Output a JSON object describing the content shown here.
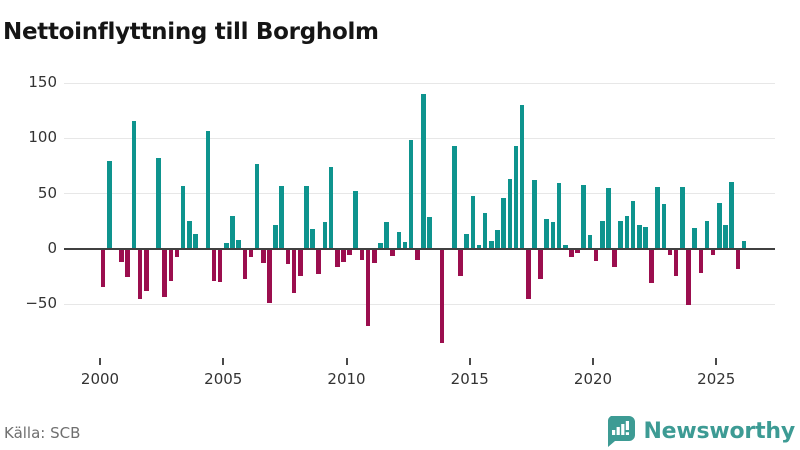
{
  "title": "Nettoinflyttning till Borgholm",
  "source": "Källa: SCB",
  "brand": "Newsworthy",
  "colors": {
    "positive_bar": "#0e948e",
    "negative_bar": "#9b0e4e",
    "logo_teal": "#3d9b94",
    "gridline": "#e7e7e7",
    "zero_axis": "#404040"
  },
  "chart_data": {
    "type": "bar",
    "title": "Nettoinflyttning till Borgholm",
    "xlabel": "",
    "ylabel": "",
    "frequency": "quarterly",
    "y_gridlines": [
      150,
      100,
      50,
      0,
      -50
    ],
    "y_tick_labels": [
      "150",
      "100",
      "50",
      "0",
      "−50"
    ],
    "x_tick_labels": [
      "2000",
      "2005",
      "2010",
      "2015",
      "2020",
      "2025"
    ],
    "ylim": [
      -95,
      160
    ],
    "grid": true,
    "legend": false,
    "points": [
      [
        "2000Q1",
        -34
      ],
      [
        "2000Q2",
        80
      ],
      [
        "2000Q3",
        0
      ],
      [
        "2000Q4",
        -12
      ],
      [
        "2001Q1",
        -25
      ],
      [
        "2001Q2",
        116
      ],
      [
        "2001Q3",
        -45
      ],
      [
        "2001Q4",
        -38
      ],
      [
        "2002Q1",
        0
      ],
      [
        "2002Q2",
        82
      ],
      [
        "2002Q3",
        -43
      ],
      [
        "2002Q4",
        -29
      ],
      [
        "2003Q1",
        -7
      ],
      [
        "2003Q2",
        57
      ],
      [
        "2003Q3",
        25
      ],
      [
        "2003Q4",
        14
      ],
      [
        "2004Q1",
        0
      ],
      [
        "2004Q2",
        107
      ],
      [
        "2004Q3",
        -29
      ],
      [
        "2004Q4",
        -30
      ],
      [
        "2005Q1",
        5
      ],
      [
        "2005Q2",
        30
      ],
      [
        "2005Q3",
        8
      ],
      [
        "2005Q4",
        -27
      ],
      [
        "2006Q1",
        -7
      ],
      [
        "2006Q2",
        77
      ],
      [
        "2006Q3",
        -13
      ],
      [
        "2006Q4",
        -49
      ],
      [
        "2007Q1",
        22
      ],
      [
        "2007Q2",
        57
      ],
      [
        "2007Q3",
        -14
      ],
      [
        "2007Q4",
        -40
      ],
      [
        "2008Q1",
        -24
      ],
      [
        "2008Q2",
        57
      ],
      [
        "2008Q3",
        18
      ],
      [
        "2008Q4",
        -23
      ],
      [
        "2009Q1",
        24
      ],
      [
        "2009Q2",
        74
      ],
      [
        "2009Q3",
        -16
      ],
      [
        "2009Q4",
        -12
      ],
      [
        "2010Q1",
        -5
      ],
      [
        "2010Q2",
        52
      ],
      [
        "2010Q3",
        -10
      ],
      [
        "2010Q4",
        -70
      ],
      [
        "2011Q1",
        -13
      ],
      [
        "2011Q2",
        5
      ],
      [
        "2011Q3",
        24
      ],
      [
        "2011Q4",
        -6
      ],
      [
        "2012Q1",
        15
      ],
      [
        "2012Q2",
        6
      ],
      [
        "2012Q3",
        99
      ],
      [
        "2012Q4",
        -10
      ],
      [
        "2013Q1",
        140
      ],
      [
        "2013Q2",
        29
      ],
      [
        "2013Q3",
        0
      ],
      [
        "2013Q4",
        -85
      ],
      [
        "2014Q1",
        0
      ],
      [
        "2014Q2",
        93
      ],
      [
        "2014Q3",
        -24
      ],
      [
        "2014Q4",
        14
      ],
      [
        "2015Q1",
        48
      ],
      [
        "2015Q2",
        4
      ],
      [
        "2015Q3",
        33
      ],
      [
        "2015Q4",
        7
      ],
      [
        "2016Q1",
        17
      ],
      [
        "2016Q2",
        46
      ],
      [
        "2016Q3",
        63
      ],
      [
        "2016Q4",
        93
      ],
      [
        "2017Q1",
        130
      ],
      [
        "2017Q2",
        -45
      ],
      [
        "2017Q3",
        62
      ],
      [
        "2017Q4",
        -27
      ],
      [
        "2018Q1",
        27
      ],
      [
        "2018Q2",
        24
      ],
      [
        "2018Q3",
        60
      ],
      [
        "2018Q4",
        4
      ],
      [
        "2019Q1",
        -7
      ],
      [
        "2019Q2",
        -4
      ],
      [
        "2019Q3",
        58
      ],
      [
        "2019Q4",
        13
      ],
      [
        "2020Q1",
        -11
      ],
      [
        "2020Q2",
        25
      ],
      [
        "2020Q3",
        55
      ],
      [
        "2020Q4",
        -16
      ],
      [
        "2021Q1",
        25
      ],
      [
        "2021Q2",
        30
      ],
      [
        "2021Q3",
        43
      ],
      [
        "2021Q4",
        22
      ],
      [
        "2022Q1",
        20
      ],
      [
        "2022Q2",
        -31
      ],
      [
        "2022Q3",
        56
      ],
      [
        "2022Q4",
        41
      ],
      [
        "2023Q1",
        -5
      ],
      [
        "2023Q2",
        -24
      ],
      [
        "2023Q3",
        56
      ],
      [
        "2023Q4",
        -51
      ],
      [
        "2024Q1",
        19
      ],
      [
        "2024Q2",
        -22
      ],
      [
        "2024Q3",
        25
      ],
      [
        "2024Q4",
        -5
      ],
      [
        "2025Q1",
        42
      ],
      [
        "2025Q2",
        22
      ],
      [
        "2025Q3",
        61
      ],
      [
        "2025Q4",
        -18
      ],
      [
        "2026Q1",
        7
      ]
    ]
  }
}
